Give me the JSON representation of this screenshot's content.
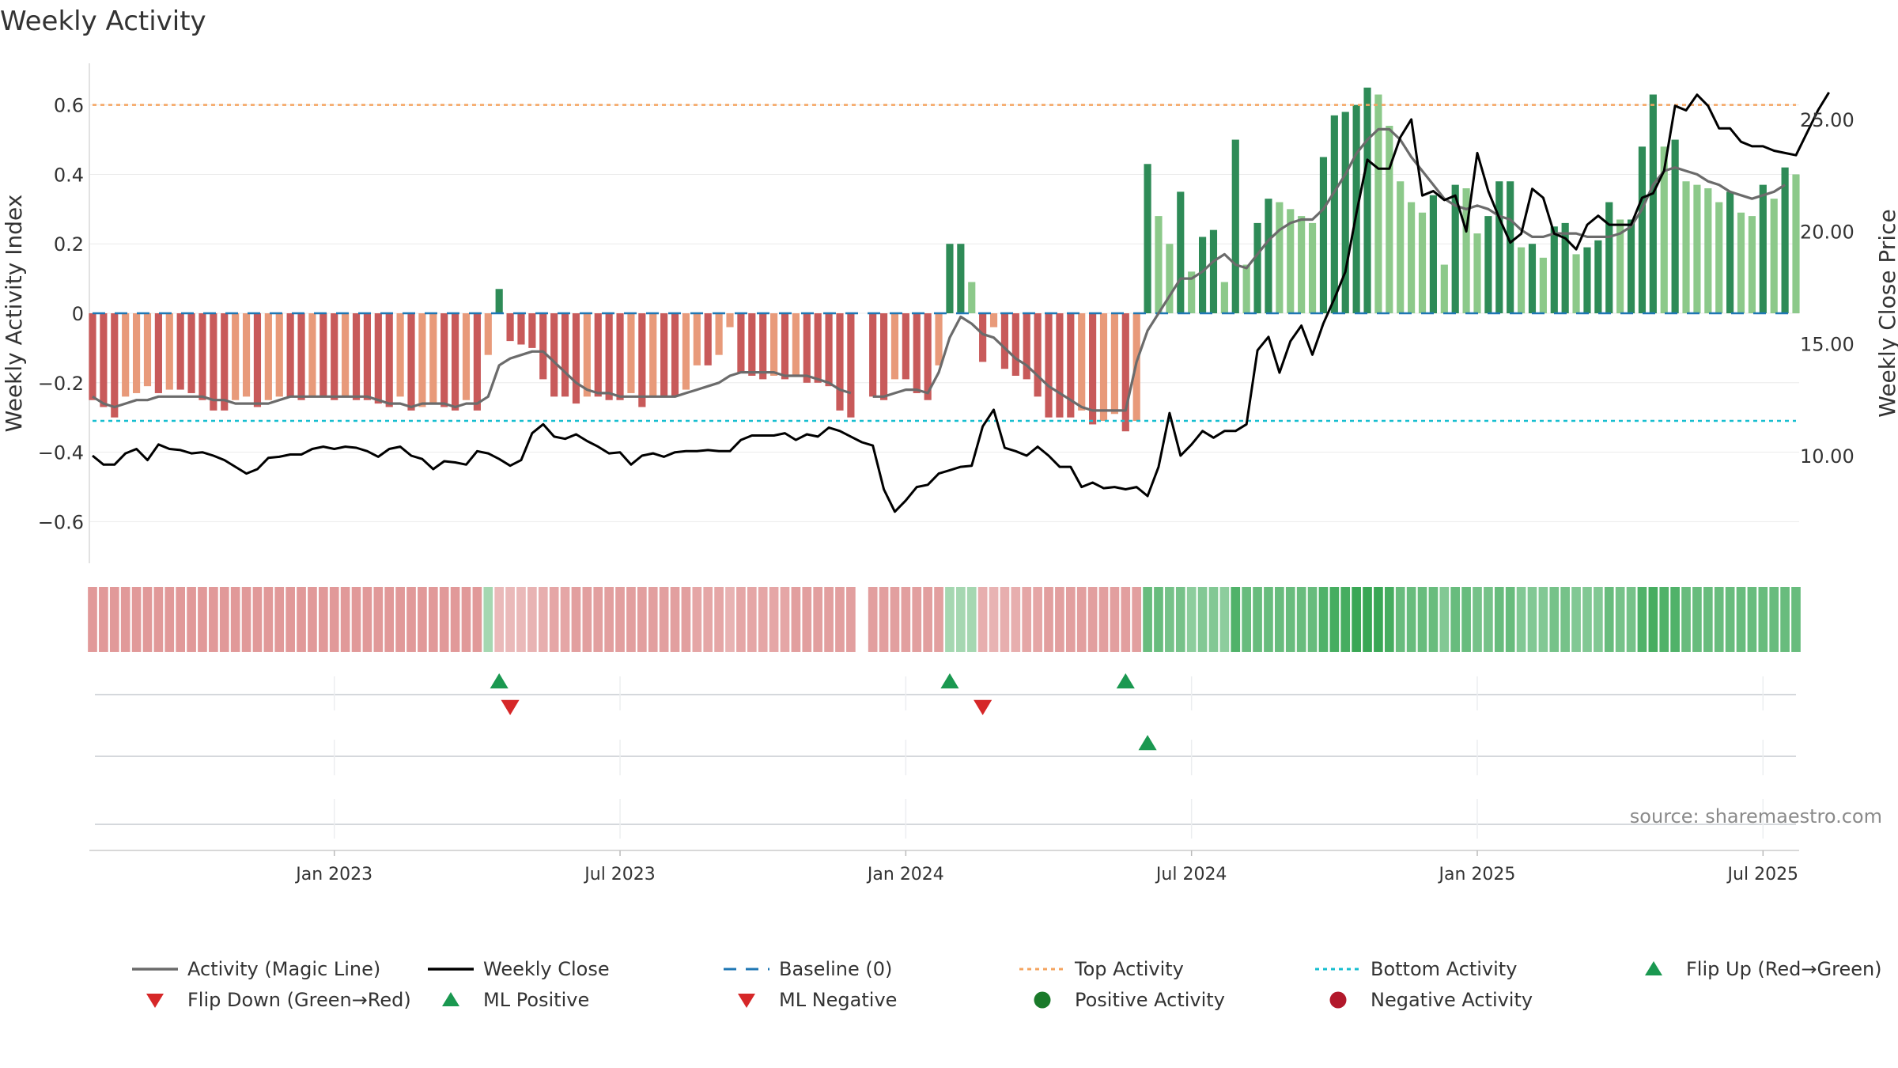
{
  "chart_data": {
    "type": "bar",
    "title": "Weekly Activity",
    "ylabel": "Weekly Activity Index",
    "y2label": "Weekly Close Price",
    "ylim": [
      -0.72,
      0.72
    ],
    "y2lim": [
      5.2,
      27.5
    ],
    "yticks": [
      -0.6,
      -0.4,
      -0.2,
      0,
      0.2,
      0.4,
      0.6
    ],
    "ytick_labels": [
      "−0.6",
      "−0.4",
      "−0.2",
      "0",
      "0.2",
      "0.4",
      "0.6"
    ],
    "y2ticks": [
      10,
      15,
      20,
      25
    ],
    "y2tick_labels": [
      "10.00",
      "15.00",
      "20.00",
      "25.00"
    ],
    "xticks": [
      {
        "week": 22,
        "label": "Jan 2023"
      },
      {
        "week": 48,
        "label": "Jul 2023"
      },
      {
        "week": 74,
        "label": "Jan 2024"
      },
      {
        "week": 100,
        "label": "Jul 2024"
      },
      {
        "week": 126,
        "label": "Jan 2025"
      },
      {
        "week": 152,
        "label": "Jul 2025"
      }
    ],
    "reference_lines": {
      "baseline": 0,
      "top_activity": 0.6,
      "bottom_activity": -0.31
    },
    "source": "source: sharemaestro.com",
    "legend": [
      {
        "label": "Activity (Magic Line)",
        "marker": "line",
        "color": "#6b6b6b"
      },
      {
        "label": "Weekly Close",
        "marker": "line",
        "color": "#000000"
      },
      {
        "label": "Baseline (0)",
        "marker": "dash",
        "color": "#1f77b4"
      },
      {
        "label": "Top Activity",
        "marker": "dot",
        "color": "#f4a460"
      },
      {
        "label": "Bottom Activity",
        "marker": "dot",
        "color": "#17becf"
      },
      {
        "label": "Flip Up (Red→Green)",
        "marker": "triangle-up",
        "color": "#1a9850"
      },
      {
        "label": "Flip Down (Green→Red)",
        "marker": "triangle-down",
        "color": "#d62728"
      },
      {
        "label": "ML Positive",
        "marker": "triangle-up",
        "color": "#1a9850"
      },
      {
        "label": "ML Negative",
        "marker": "triangle-down",
        "color": "#d62728"
      },
      {
        "label": "Positive Activity",
        "marker": "circle",
        "color": "#1a7a2a"
      },
      {
        "label": "Negative Activity",
        "marker": "circle",
        "color": "#b2182b"
      }
    ],
    "colors": {
      "neg_dark": "#c85a5a",
      "neg_light": "#e89a7a",
      "pos_dark": "#2e8b57",
      "pos_light": "#8cc98a",
      "magic_line": "#6b6b6b",
      "close_line": "#000000",
      "baseline": "#1f77b4",
      "top_line": "#f4a460",
      "bottom_line": "#17becf"
    },
    "series": [
      {
        "name": "Weekly Activity",
        "values": [
          -0.25,
          -0.27,
          -0.3,
          -0.24,
          -0.23,
          -0.21,
          -0.23,
          -0.22,
          -0.22,
          -0.23,
          -0.25,
          -0.28,
          -0.28,
          -0.25,
          -0.24,
          -0.27,
          -0.25,
          -0.24,
          -0.24,
          -0.25,
          -0.24,
          -0.24,
          -0.25,
          -0.24,
          -0.25,
          -0.25,
          -0.26,
          -0.27,
          -0.24,
          -0.28,
          -0.27,
          -0.26,
          -0.27,
          -0.28,
          -0.25,
          -0.28,
          -0.12,
          0.07,
          -0.08,
          -0.09,
          -0.1,
          -0.19,
          -0.24,
          -0.24,
          -0.26,
          -0.24,
          -0.24,
          -0.25,
          -0.25,
          -0.23,
          -0.27,
          -0.24,
          -0.24,
          -0.24,
          -0.22,
          -0.15,
          -0.15,
          -0.12,
          -0.04,
          -0.17,
          -0.18,
          -0.19,
          -0.18,
          -0.19,
          -0.18,
          -0.2,
          -0.2,
          -0.21,
          -0.28,
          -0.3,
          null,
          -0.24,
          -0.25,
          -0.19,
          -0.19,
          -0.23,
          -0.25,
          -0.15,
          0.2,
          0.2,
          0.09,
          -0.14,
          -0.04,
          -0.16,
          -0.18,
          -0.19,
          -0.24,
          -0.3,
          -0.3,
          -0.3,
          -0.28,
          -0.32,
          -0.31,
          -0.29,
          -0.34,
          -0.31,
          0.43,
          0.28,
          0.2,
          0.35,
          0.12,
          0.22,
          0.24,
          0.09,
          0.5,
          0.14,
          0.26,
          0.33,
          0.32,
          0.3,
          0.28,
          0.26,
          0.45,
          0.57,
          0.58,
          0.6,
          0.65,
          0.63,
          0.54,
          0.38,
          0.32,
          0.29,
          0.34,
          0.14,
          0.37,
          0.36,
          0.23,
          0.28,
          0.38,
          0.38,
          0.19,
          0.2,
          0.16,
          0.25,
          0.26,
          0.17,
          0.19,
          0.21,
          0.32,
          0.27,
          0.27,
          0.48,
          0.63,
          0.48,
          0.5,
          0.38,
          0.37,
          0.36,
          0.32,
          0.35,
          0.29,
          0.28,
          0.37,
          0.33,
          0.42,
          0.4
        ]
      },
      {
        "name": "Activity (Magic Line)",
        "values": [
          -0.24,
          -0.26,
          -0.27,
          -0.26,
          -0.25,
          -0.25,
          -0.24,
          -0.24,
          -0.24,
          -0.24,
          -0.24,
          -0.25,
          -0.25,
          -0.26,
          -0.26,
          -0.26,
          -0.26,
          -0.25,
          -0.24,
          -0.24,
          -0.24,
          -0.24,
          -0.24,
          -0.24,
          -0.24,
          -0.24,
          -0.25,
          -0.26,
          -0.26,
          -0.27,
          -0.26,
          -0.26,
          -0.26,
          -0.27,
          -0.26,
          -0.26,
          -0.24,
          -0.15,
          -0.13,
          -0.12,
          -0.11,
          -0.11,
          -0.14,
          -0.17,
          -0.2,
          -0.22,
          -0.23,
          -0.23,
          -0.24,
          -0.24,
          -0.24,
          -0.24,
          -0.24,
          -0.24,
          -0.23,
          -0.22,
          -0.21,
          -0.2,
          -0.18,
          -0.17,
          -0.17,
          -0.17,
          -0.17,
          -0.18,
          -0.18,
          -0.18,
          -0.19,
          -0.2,
          -0.22,
          -0.23,
          null,
          -0.24,
          -0.24,
          -0.23,
          -0.22,
          -0.22,
          -0.23,
          -0.17,
          -0.07,
          -0.01,
          -0.03,
          -0.06,
          -0.07,
          -0.1,
          -0.13,
          -0.15,
          -0.18,
          -0.21,
          -0.23,
          -0.25,
          -0.27,
          -0.28,
          -0.28,
          -0.28,
          -0.28,
          -0.14,
          -0.05,
          0.0,
          0.05,
          0.1,
          0.1,
          0.12,
          0.15,
          0.17,
          0.14,
          0.13,
          0.17,
          0.21,
          0.24,
          0.26,
          0.27,
          0.27,
          0.3,
          0.35,
          0.4,
          0.46,
          0.5,
          0.53,
          0.53,
          0.5,
          0.45,
          0.41,
          0.37,
          0.33,
          0.31,
          0.3,
          0.31,
          0.3,
          0.28,
          0.27,
          0.24,
          0.22,
          0.22,
          0.23,
          0.23,
          0.23,
          0.22,
          0.22,
          0.22,
          0.23,
          0.25,
          0.3,
          0.37,
          0.41,
          0.42,
          0.41,
          0.4,
          0.38,
          0.37,
          0.35,
          0.34,
          0.33,
          0.34,
          0.35,
          0.37
        ]
      },
      {
        "name": "Weekly Close",
        "values": [
          10.0,
          9.6,
          9.6,
          10.1,
          10.3,
          9.8,
          10.5,
          10.3,
          10.25,
          10.1,
          10.15,
          10.0,
          9.8,
          9.5,
          9.2,
          9.4,
          9.9,
          9.95,
          10.05,
          10.05,
          10.3,
          10.4,
          10.3,
          10.4,
          10.35,
          10.2,
          9.95,
          10.3,
          10.4,
          10.0,
          9.85,
          9.4,
          9.75,
          9.7,
          9.6,
          10.2,
          10.1,
          9.85,
          9.55,
          9.8,
          11.0,
          11.4,
          10.85,
          10.75,
          10.95,
          10.65,
          10.4,
          10.1,
          10.15,
          9.6,
          10.0,
          10.1,
          9.95,
          10.15,
          10.2,
          10.2,
          10.25,
          10.2,
          10.2,
          10.7,
          10.9,
          10.9,
          10.9,
          11.0,
          10.7,
          10.95,
          10.85,
          11.25,
          11.1,
          10.85,
          10.6,
          10.45,
          8.5,
          7.5,
          8.0,
          8.6,
          8.7,
          9.2,
          9.35,
          9.5,
          9.55,
          11.3,
          12.05,
          10.35,
          10.2,
          10.0,
          10.4,
          10.0,
          9.5,
          9.5,
          8.6,
          8.8,
          8.55,
          8.6,
          8.5,
          8.6,
          8.2,
          9.5,
          11.9,
          10.0,
          10.5,
          11.1,
          10.8,
          11.1,
          11.1,
          11.4,
          14.7,
          15.3,
          13.7,
          15.1,
          15.8,
          14.5,
          15.9,
          17.0,
          18.2,
          20.8,
          23.2,
          22.8,
          22.8,
          24.2,
          25.0,
          21.6,
          21.8,
          21.4,
          21.6,
          20.0,
          23.5,
          21.8,
          20.6,
          19.5,
          19.9,
          21.9,
          21.5,
          19.9,
          19.7,
          19.2,
          20.3,
          20.7,
          20.3,
          20.3,
          20.3,
          21.5,
          21.7,
          22.7,
          25.6,
          25.4,
          26.1,
          25.6,
          24.6,
          24.6,
          24.0,
          23.8,
          23.8,
          23.6,
          23.5,
          23.4,
          24.4,
          25.4,
          26.2
        ]
      }
    ],
    "heat_strip": [
      -1,
      -1,
      -1,
      -1,
      -1,
      -1,
      -1,
      -1,
      -1,
      -1,
      -1,
      -1,
      -1,
      -1,
      -1,
      -1,
      -1,
      -1,
      -1,
      -1,
      -1,
      -1,
      -1,
      -1,
      -1,
      -1,
      -1,
      -1,
      -1,
      -1,
      -1,
      -1,
      -1,
      -1,
      -1,
      -1,
      0.4,
      -0.5,
      -0.5,
      -0.5,
      -0.6,
      -0.7,
      -0.8,
      -0.8,
      -0.9,
      -0.9,
      -0.9,
      -0.9,
      -0.9,
      -0.9,
      -0.9,
      -0.9,
      -0.9,
      -0.9,
      -0.9,
      -0.8,
      -0.8,
      -0.8,
      -0.6,
      -0.8,
      -0.8,
      -0.8,
      -0.8,
      -0.8,
      -0.9,
      -0.9,
      -0.9,
      -0.9,
      -0.9,
      -0.9,
      null,
      -0.9,
      -0.9,
      -0.9,
      -0.9,
      -0.9,
      -0.9,
      -0.9,
      0.4,
      0.4,
      0.4,
      -0.7,
      -0.6,
      -0.7,
      -0.7,
      -0.8,
      -0.8,
      -0.9,
      -0.9,
      -0.9,
      -0.9,
      -0.9,
      -0.9,
      -0.9,
      -0.9,
      -0.9,
      0.9,
      0.9,
      0.8,
      0.8,
      0.6,
      0.7,
      0.7,
      0.6,
      1.1,
      0.9,
      0.9,
      0.9,
      0.9,
      0.9,
      0.9,
      0.9,
      1.1,
      1.2,
      1.2,
      1.3,
      1.3,
      1.3,
      1.2,
      0.9,
      0.9,
      0.9,
      0.9,
      0.7,
      0.9,
      0.9,
      0.8,
      0.8,
      0.9,
      0.9,
      0.7,
      0.7,
      0.7,
      0.8,
      0.8,
      0.7,
      0.7,
      0.7,
      0.9,
      0.8,
      0.8,
      1.1,
      1.2,
      1.1,
      1.1,
      0.9,
      0.9,
      0.9,
      0.9,
      0.9,
      0.9,
      0.9,
      0.9,
      0.9,
      0.9,
      0.9
    ],
    "signals": {
      "flip_up": [
        37,
        78,
        94
      ],
      "flip_down": [
        38,
        81
      ],
      "ml_positive": [
        96
      ],
      "ml_negative": []
    }
  }
}
